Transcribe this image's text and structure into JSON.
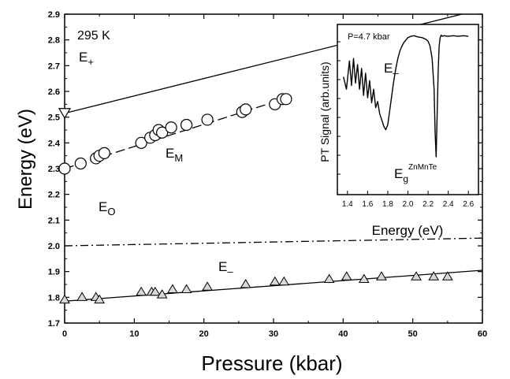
{
  "chart_data": {
    "type": "scatter",
    "title": "",
    "xlabel": "Pressure (kbar)",
    "ylabel": "Energy (eV)",
    "xlim": [
      0,
      60
    ],
    "ylim": [
      1.7,
      2.9
    ],
    "x_ticks": [
      "0",
      "10",
      "20",
      "30",
      "40",
      "50",
      "60"
    ],
    "y_ticks": [
      "1.7",
      "1.8",
      "1.9",
      "2.0",
      "2.1",
      "2.2",
      "2.3",
      "2.4",
      "2.5",
      "2.6",
      "2.7",
      "2.8",
      "2.9"
    ],
    "temperature_label": "295 K",
    "series": [
      {
        "name": "E+",
        "label_main": "E",
        "label_sub": "+",
        "line_style": "solid",
        "marker": "down-triangle",
        "fit_x": [
          0,
          60
        ],
        "fit_y": [
          2.515,
          2.92
        ],
        "points_x": [
          0
        ],
        "points_y": [
          2.515
        ]
      },
      {
        "name": "EM",
        "label_main": "E",
        "label_sub": "M",
        "line_style": "dashed",
        "marker": "circle",
        "fit_x": [
          0,
          32
        ],
        "fit_y": [
          2.3,
          2.575
        ],
        "points_x": [
          0,
          2.3,
          4.5,
          5.0,
          5.7,
          11.0,
          12.3,
          13.0,
          13.5,
          14.0,
          15.3,
          17.5,
          20.5,
          25.5,
          26.0,
          30.2,
          31.3,
          31.8
        ],
        "points_y": [
          2.3,
          2.32,
          2.34,
          2.35,
          2.36,
          2.4,
          2.42,
          2.43,
          2.45,
          2.44,
          2.46,
          2.47,
          2.49,
          2.52,
          2.53,
          2.55,
          2.57,
          2.57
        ]
      },
      {
        "name": "EO",
        "label_main": "E",
        "label_sub": "O",
        "line_style": "dash-dot",
        "marker": "none",
        "fit_x": [
          0,
          60
        ],
        "fit_y": [
          2.0,
          2.03
        ],
        "points_x": [],
        "points_y": []
      },
      {
        "name": "E-",
        "label_main": "E",
        "label_sub": "–",
        "line_style": "solid",
        "marker": "up-triangle",
        "fit_x": [
          0,
          60
        ],
        "fit_y": [
          1.785,
          1.905
        ],
        "points_x": [
          0,
          2.5,
          4.5,
          5.0,
          11.0,
          12.5,
          13.0,
          14.0,
          15.5,
          17.5,
          20.5,
          26.0,
          30.2,
          31.5,
          38.0,
          40.5,
          43.0,
          45.5,
          50.5,
          53.0,
          55.0
        ],
        "points_y": [
          1.79,
          1.8,
          1.8,
          1.79,
          1.82,
          1.82,
          1.82,
          1.81,
          1.83,
          1.83,
          1.84,
          1.85,
          1.86,
          1.86,
          1.87,
          1.88,
          1.87,
          1.88,
          1.88,
          1.88,
          1.88
        ]
      }
    ],
    "inset": {
      "type": "line",
      "label": "P=4.7 kbar",
      "xlabel": "Energy (eV)",
      "ylabel": "PT Signal (arb.units)",
      "xlim": [
        1.3,
        2.7
      ],
      "x_ticks": [
        "1.4",
        "1.6",
        "1.8",
        "2.0",
        "2.2",
        "2.4",
        "2.6"
      ],
      "annotation_e_main": "E",
      "annotation_e_sub": "–",
      "annotation_g_main": "E",
      "annotation_g_sub": "g",
      "annotation_g_sup": "ZnMnTe",
      "x": [
        1.36,
        1.39,
        1.42,
        1.44,
        1.46,
        1.48,
        1.5,
        1.52,
        1.54,
        1.56,
        1.58,
        1.6,
        1.62,
        1.64,
        1.66,
        1.68,
        1.7,
        1.72,
        1.74,
        1.76,
        1.78,
        1.8,
        1.82,
        1.84,
        1.86,
        1.88,
        1.9,
        1.92,
        1.94,
        1.96,
        1.98,
        2.0,
        2.03,
        2.06,
        2.1,
        2.14,
        2.18,
        2.2,
        2.22,
        2.24,
        2.26,
        2.27,
        2.28,
        2.29,
        2.3,
        2.31,
        2.32,
        2.33,
        2.34,
        2.36,
        2.4,
        2.45,
        2.5,
        2.55,
        2.6
      ],
      "y": [
        0.65,
        0.55,
        0.78,
        0.58,
        0.8,
        0.6,
        0.75,
        0.55,
        0.72,
        0.5,
        0.68,
        0.48,
        0.62,
        0.44,
        0.55,
        0.4,
        0.45,
        0.35,
        0.3,
        0.25,
        0.22,
        0.26,
        0.38,
        0.5,
        0.62,
        0.72,
        0.8,
        0.86,
        0.9,
        0.93,
        0.95,
        0.97,
        0.98,
        0.985,
        0.975,
        0.97,
        0.955,
        0.94,
        0.9,
        0.8,
        0.55,
        0.2,
        0.0,
        0.35,
        0.7,
        0.9,
        0.97,
        0.99,
        0.98,
        0.985,
        0.98,
        0.985,
        0.98,
        0.985,
        0.98
      ]
    }
  }
}
